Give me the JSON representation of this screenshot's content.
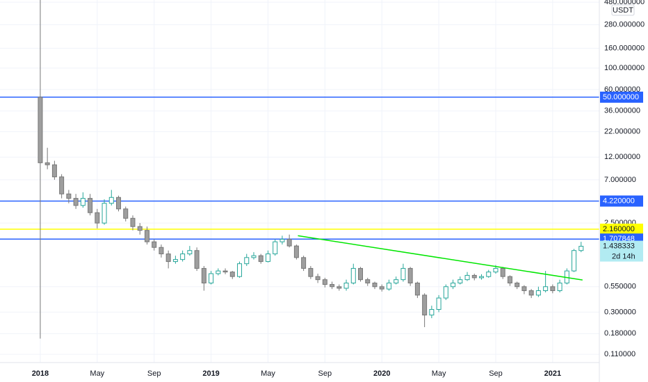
{
  "chart_data": {
    "type": "candlestick",
    "currency": "USDT",
    "countdown": "2d 14h",
    "log_scale": true,
    "grid": true,
    "up_color": "#26a69a",
    "down_color": "#9e9e9e",
    "x": [
      0,
      0.5,
      1,
      1.5,
      2,
      2.5,
      3,
      3.5,
      4,
      4.5,
      5,
      5.5,
      6,
      6.5,
      7,
      7.5,
      8,
      8.5,
      9,
      9.5,
      10,
      10.5,
      11,
      11.5,
      12,
      12.5,
      13,
      13.5,
      14,
      14.5,
      15,
      15.5,
      16,
      16.5,
      17,
      17.5,
      18,
      18.5,
      19,
      19.5,
      20,
      20.5,
      21,
      21.5,
      22,
      22.5,
      23,
      23.5,
      24,
      24.5,
      25,
      25.5,
      26,
      26.5,
      27,
      27.5,
      28,
      28.5,
      29,
      29.5,
      30,
      30.5,
      31,
      31.5,
      32,
      32.5,
      33,
      33.5,
      34,
      34.5,
      35,
      35.5,
      36,
      36.5,
      37,
      37.5,
      38
    ],
    "open": [
      50,
      10.5,
      10,
      7.5,
      5,
      4.5,
      3.8,
      4.5,
      3.2,
      2.5,
      4,
      4.6,
      3.5,
      2.8,
      2.3,
      2.1,
      1.6,
      1.4,
      1.2,
      1.0,
      1.05,
      1.2,
      1.3,
      0.85,
      0.6,
      0.75,
      0.8,
      0.78,
      0.7,
      0.95,
      1.1,
      1.15,
      1.0,
      1.2,
      1.6,
      1.7,
      1.45,
      1.1,
      0.85,
      0.7,
      0.65,
      0.58,
      0.55,
      0.53,
      0.6,
      0.85,
      0.65,
      0.6,
      0.55,
      0.52,
      0.6,
      0.65,
      0.85,
      0.6,
      0.45,
      0.28,
      0.32,
      0.42,
      0.55,
      0.6,
      0.65,
      0.72,
      0.68,
      0.7,
      0.78,
      0.85,
      0.7,
      0.6,
      0.55,
      0.5,
      0.45,
      0.5,
      0.55,
      0.5,
      0.6,
      0.8,
      1.3
    ],
    "high": [
      600,
      15,
      11,
      8,
      5.5,
      5,
      5.2,
      5,
      3.5,
      4.4,
      5.5,
      4.8,
      3.7,
      3,
      2.5,
      2.3,
      1.7,
      1.5,
      1.3,
      1.15,
      1.3,
      1.45,
      1.4,
      0.9,
      0.8,
      0.85,
      0.85,
      0.8,
      1.0,
      1.2,
      1.25,
      1.2,
      1.3,
      1.7,
      1.85,
      1.9,
      1.5,
      1.15,
      0.9,
      0.75,
      0.68,
      0.62,
      0.58,
      0.65,
      0.95,
      0.88,
      0.68,
      0.62,
      0.58,
      0.65,
      0.7,
      0.95,
      0.88,
      0.62,
      0.47,
      0.35,
      0.45,
      0.58,
      0.65,
      0.7,
      0.78,
      0.75,
      0.74,
      0.82,
      0.92,
      0.88,
      0.72,
      0.62,
      0.57,
      0.52,
      0.55,
      0.8,
      0.58,
      0.65,
      0.85,
      1.35,
      1.6
    ],
    "low": [
      0.16,
      9,
      7,
      4.5,
      4,
      3.5,
      3.6,
      3,
      2.2,
      2.4,
      3.8,
      3.3,
      2.6,
      2.1,
      1.9,
      1.5,
      1.3,
      1.1,
      0.85,
      0.95,
      1.0,
      1.15,
      0.8,
      0.5,
      0.58,
      0.72,
      0.74,
      0.66,
      0.68,
      0.9,
      1.05,
      0.95,
      0.98,
      1.15,
      1.5,
      1.4,
      1.05,
      0.8,
      0.66,
      0.6,
      0.54,
      0.52,
      0.5,
      0.5,
      0.58,
      0.62,
      0.56,
      0.52,
      0.49,
      0.5,
      0.58,
      0.62,
      0.56,
      0.42,
      0.21,
      0.26,
      0.3,
      0.4,
      0.52,
      0.58,
      0.63,
      0.64,
      0.65,
      0.68,
      0.75,
      0.66,
      0.56,
      0.52,
      0.46,
      0.42,
      0.43,
      0.48,
      0.47,
      0.48,
      0.58,
      0.78,
      1.25
    ],
    "close": [
      10.5,
      10,
      7.5,
      5,
      4.5,
      3.8,
      4.5,
      3.2,
      2.5,
      4,
      4.6,
      3.5,
      2.8,
      2.3,
      2.1,
      1.6,
      1.4,
      1.2,
      1.0,
      1.05,
      1.2,
      1.3,
      0.85,
      0.6,
      0.75,
      0.8,
      0.78,
      0.7,
      0.95,
      1.1,
      1.15,
      1.0,
      1.2,
      1.6,
      1.7,
      1.45,
      1.1,
      0.85,
      0.7,
      0.65,
      0.58,
      0.55,
      0.53,
      0.6,
      0.85,
      0.65,
      0.6,
      0.55,
      0.52,
      0.6,
      0.65,
      0.85,
      0.6,
      0.45,
      0.28,
      0.32,
      0.42,
      0.55,
      0.6,
      0.65,
      0.72,
      0.68,
      0.7,
      0.78,
      0.85,
      0.7,
      0.6,
      0.55,
      0.5,
      0.45,
      0.5,
      0.55,
      0.5,
      0.6,
      0.8,
      1.3,
      1.438333
    ],
    "xlim": [
      -2.83,
      39.28
    ],
    "xticks": [
      {
        "value": 0,
        "label": "2018"
      },
      {
        "value": 4,
        "label": "May"
      },
      {
        "value": 8,
        "label": "Sep"
      },
      {
        "value": 12,
        "label": "2019"
      },
      {
        "value": 16,
        "label": "May"
      },
      {
        "value": 20,
        "label": "Sep"
      },
      {
        "value": 24,
        "label": "2020"
      },
      {
        "value": 28,
        "label": "May"
      },
      {
        "value": 32,
        "label": "Sep"
      },
      {
        "value": 36,
        "label": "2021"
      }
    ],
    "ylim": [
      0.0904,
      505
    ],
    "yticks": [
      {
        "value": 480,
        "label": "480.000000"
      },
      {
        "value": 280,
        "label": "280.000000"
      },
      {
        "value": 160,
        "label": "160.000000"
      },
      {
        "value": 100,
        "label": "100.000000"
      },
      {
        "value": 60,
        "label": "60.000000"
      },
      {
        "value": 36,
        "label": "36.000000"
      },
      {
        "value": 22,
        "label": "22.000000"
      },
      {
        "value": 12,
        "label": "12.000000"
      },
      {
        "value": 7,
        "label": "7.000000"
      },
      {
        "value": 2.5,
        "label": "2.500000"
      },
      {
        "value": 0.55,
        "label": "0.550000"
      },
      {
        "value": 0.3,
        "label": "0.300000"
      },
      {
        "value": 0.18,
        "label": "0.180000"
      },
      {
        "value": 0.11,
        "label": "0.110000"
      }
    ],
    "levels": [
      {
        "value": 50,
        "label": "50.000000",
        "color": "#2962ff"
      },
      {
        "value": 4.22,
        "label": "4.220000",
        "color": "#2962ff"
      },
      {
        "value": 2.16,
        "label": "2.160000",
        "color": "#ffff00"
      },
      {
        "value": 1.707848,
        "label": "1.707848",
        "color": "#2962ff"
      }
    ],
    "trendline": {
      "x": [
        18.1,
        38.1
      ],
      "values": [
        1.85,
        0.645
      ],
      "color": "#00e600"
    }
  }
}
